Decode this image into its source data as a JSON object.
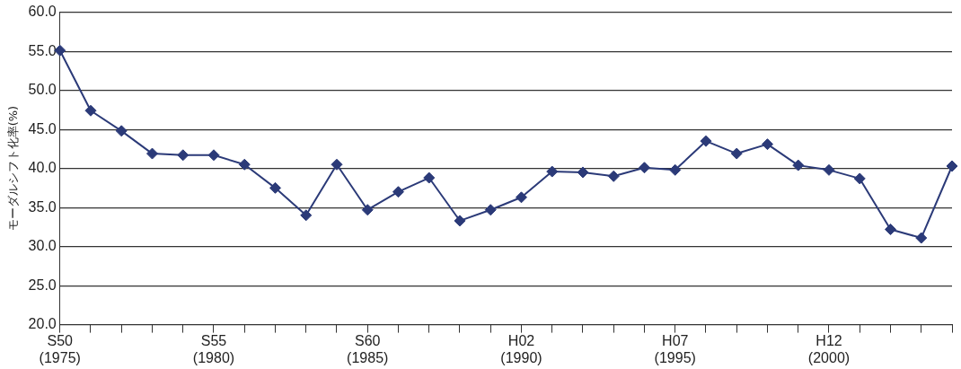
{
  "chart_data": {
    "type": "line",
    "ylabel": "モーダルシフト化率(%)",
    "categories": [
      "S50\n(1975)",
      null,
      null,
      null,
      null,
      "S55\n(1980)",
      null,
      null,
      null,
      null,
      "S60\n(1985)",
      null,
      null,
      null,
      null,
      "H02\n(1990)",
      null,
      null,
      null,
      null,
      "H07\n(1995)",
      null,
      null,
      null,
      null,
      "H12\n(2000)",
      null,
      null,
      null,
      null
    ],
    "series": [
      {
        "color": "#2b3a78",
        "values": [
          55.1,
          47.4,
          44.8,
          41.9,
          41.7,
          41.7,
          40.5,
          37.5,
          34.0,
          40.5,
          34.7,
          37.0,
          38.8,
          33.3,
          34.7,
          36.3,
          39.6,
          39.5,
          39.0,
          40.1,
          39.8,
          43.5,
          41.9,
          43.1,
          40.4,
          39.8,
          38.7,
          32.2,
          31.1,
          40.3
        ]
      }
    ],
    "ylim": [
      20,
      60
    ],
    "yticks": [
      {
        "value": 20,
        "label": "20.0"
      },
      {
        "value": 25,
        "label": "25.0"
      },
      {
        "value": 30,
        "label": "30.0"
      },
      {
        "value": 35,
        "label": "35.0"
      },
      {
        "value": 40,
        "label": "40.0"
      },
      {
        "value": 45,
        "label": "45.0"
      },
      {
        "value": 50,
        "label": "50.0"
      },
      {
        "value": 55,
        "label": "55.0"
      },
      {
        "value": 60,
        "label": "60.0"
      }
    ],
    "grid": "y",
    "marker": "diamond",
    "line_style": "solid",
    "legend": false
  }
}
